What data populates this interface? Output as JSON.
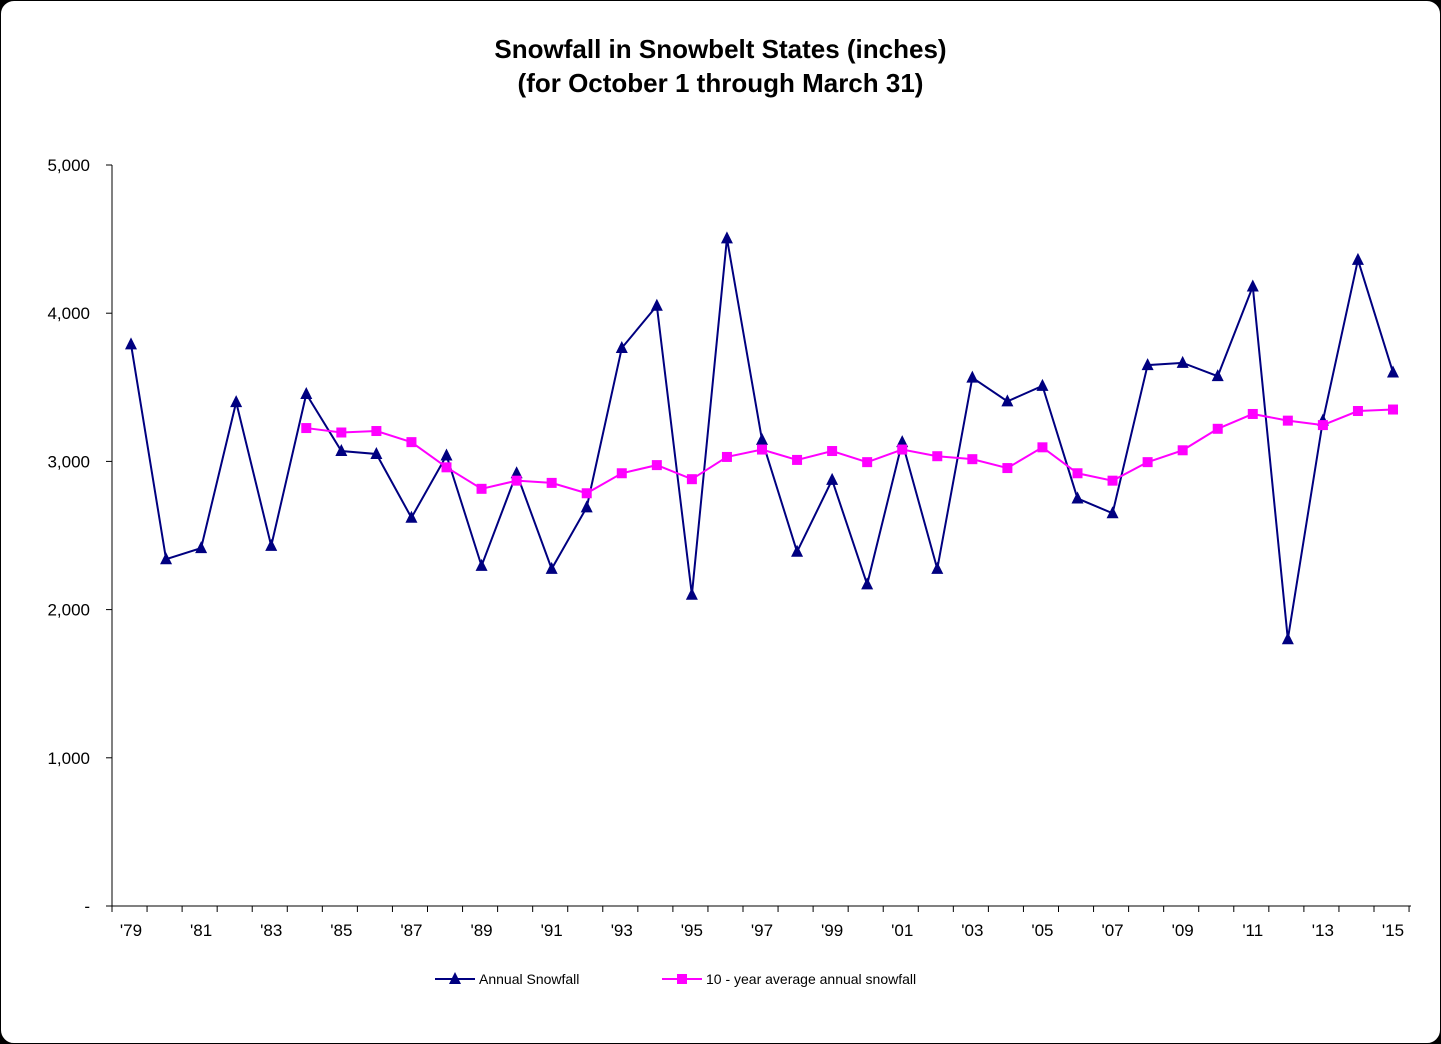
{
  "chart_data": {
    "type": "line",
    "title": "Snowfall in Snowbelt States (inches)",
    "subtitle": "(for October 1 through March 31)",
    "xlabel": "",
    "ylabel": "",
    "ylim": [
      0,
      5000
    ],
    "yticks": [
      0,
      1000,
      2000,
      3000,
      4000,
      5000
    ],
    "ytick_labels": [
      "-",
      "1,000",
      "2,000",
      "3,000",
      "4,000",
      "5,000"
    ],
    "x": [
      "'79",
      "'80",
      "'81",
      "'82",
      "'83",
      "'84",
      "'85",
      "'86",
      "'87",
      "'88",
      "'89",
      "'90",
      "'91",
      "'92",
      "'93",
      "'94",
      "'95",
      "'96",
      "'97",
      "'98",
      "'99",
      "'00",
      "'01",
      "'02",
      "'03",
      "'04",
      "'05",
      "'06",
      "'07",
      "'08",
      "'09",
      "'10",
      "'11",
      "'12",
      "'13",
      "'14",
      "'15"
    ],
    "xtick_labels": [
      "'79",
      "'81",
      "'83",
      "'85",
      "'87",
      "'89",
      "'91",
      "'93",
      "'95",
      "'97",
      "'99",
      "'01",
      "'03",
      "'05",
      "'07",
      "'09",
      "'11",
      "'13",
      "'15"
    ],
    "legend_position": "bottom",
    "grid": false,
    "series": [
      {
        "name": "Annual Snowfall",
        "color": "#000080",
        "marker": "triangle",
        "values": [
          3790,
          2340,
          2415,
          3400,
          2430,
          3455,
          3070,
          3050,
          2620,
          3040,
          2295,
          2920,
          2275,
          2690,
          3765,
          4050,
          2100,
          4505,
          3145,
          2390,
          2875,
          2170,
          3130,
          2275,
          3565,
          3405,
          3510,
          2750,
          2650,
          3650,
          3665,
          3575,
          4180,
          1800,
          3275,
          4360,
          3600
        ]
      },
      {
        "name": "10 - year average annual snowfall",
        "color": "#FF00FF",
        "marker": "square",
        "values": [
          null,
          null,
          null,
          null,
          null,
          3225,
          3195,
          3205,
          3130,
          2960,
          2815,
          2870,
          2855,
          2785,
          2920,
          2975,
          2880,
          3030,
          3080,
          3010,
          3070,
          2995,
          3080,
          3035,
          3015,
          2955,
          3095,
          2920,
          2870,
          2995,
          3075,
          3220,
          3320,
          3275,
          3245,
          3340,
          3350
        ]
      }
    ]
  }
}
